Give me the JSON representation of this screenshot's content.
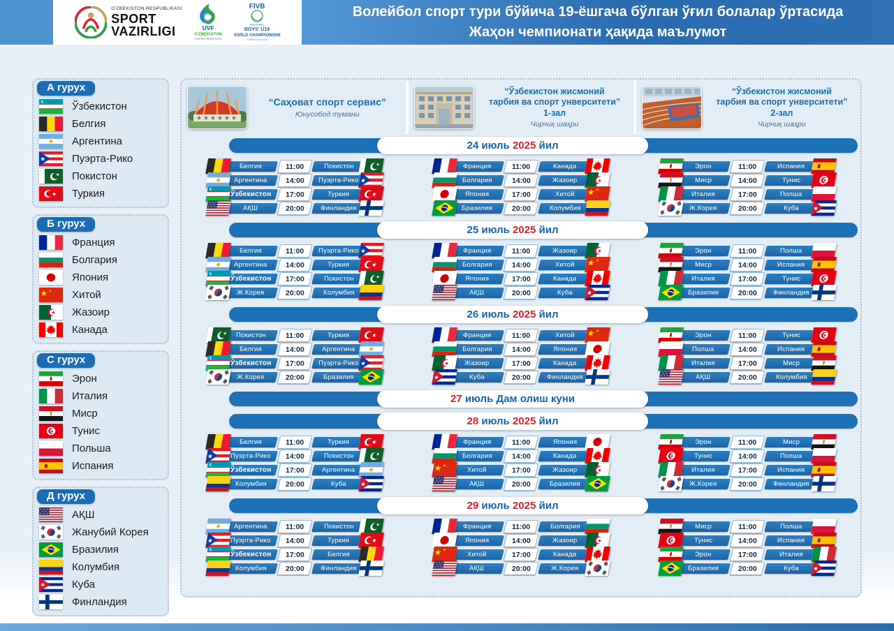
{
  "header": {
    "ministry": {
      "small": "O'ZBEKISTON RESPUBLIKASI",
      "big1": "SPORT",
      "big2": "VAZIRLIGI"
    },
    "uvf": {
      "acr": "UVF",
      "line1": "O'ZBEKISTON",
      "line2": "VOLEYBOL FEDERATSIYASI"
    },
    "fivb": {
      "brand": "FIVB",
      "sport": "VOLLEYBALL",
      "cat": "BOYS' U19",
      "event": "WORLD CHAMPIONSHIP",
      "host": "UZBEKISTAN 2025"
    },
    "title_line1": "Волейбол спорт тури бўйича 19-ёшгача бўлган ўғил болалар ўртасида",
    "title_line2": "Жаҳон чемпионати ҳақида маълумот"
  },
  "colors": {
    "bar_blue": "#1d71b6",
    "date_blue": "#1565ad",
    "date_red": "#e01f26",
    "pill_blue": "#1a6db4",
    "header_stripe": "#4e92cf"
  },
  "groups": [
    {
      "name": "А гурух",
      "teams": [
        {
          "f": "uz",
          "n": "Ўзбекистон"
        },
        {
          "f": "be",
          "n": "Белгия"
        },
        {
          "f": "ar",
          "n": "Аргентина"
        },
        {
          "f": "pr",
          "n": "Пуэрта-Рико"
        },
        {
          "f": "pk",
          "n": "Покистон"
        },
        {
          "f": "tr",
          "n": "Туркия"
        }
      ]
    },
    {
      "name": "Б гурух",
      "teams": [
        {
          "f": "fr",
          "n": "Франция"
        },
        {
          "f": "bg",
          "n": "Болгария"
        },
        {
          "f": "jp",
          "n": "Япония"
        },
        {
          "f": "cn",
          "n": "Хитой"
        },
        {
          "f": "dz",
          "n": "Жазоир"
        },
        {
          "f": "ca",
          "n": "Канада"
        }
      ]
    },
    {
      "name": "С гурух",
      "teams": [
        {
          "f": "ir",
          "n": "Эрон"
        },
        {
          "f": "it",
          "n": "Италия"
        },
        {
          "f": "eg",
          "n": "Миср"
        },
        {
          "f": "tn",
          "n": "Тунис"
        },
        {
          "f": "pl",
          "n": "Польша"
        },
        {
          "f": "es",
          "n": "Испания"
        }
      ]
    },
    {
      "name": "Д гурух",
      "teams": [
        {
          "f": "us",
          "n": "АҚШ"
        },
        {
          "f": "kr",
          "n": "Жанубий Корея"
        },
        {
          "f": "br",
          "n": "Бразилия"
        },
        {
          "f": "co",
          "n": "Колумбия"
        },
        {
          "f": "cu",
          "n": "Куба"
        },
        {
          "f": "fi",
          "n": "Финландия"
        }
      ]
    }
  ],
  "venues": [
    {
      "title_lines": [
        "“Саҳоват спорт сервис”"
      ],
      "subtitle": "Юнусобод тумани",
      "photo": "circus-dome-building"
    },
    {
      "title_lines": [
        "“Ўзбекистон жисмоний",
        "тарбия ва спорт унверситети”",
        "1-зал"
      ],
      "subtitle": "Чирчиқ шаҳри",
      "photo": "university-building"
    },
    {
      "title_lines": [
        "“Ўзбекистон жисмоний",
        "тарбия ва спорт унверситети”",
        "2-зал"
      ],
      "subtitle": "Чирчиқ шаҳри",
      "photo": "indoor-sports-hall"
    }
  ],
  "days": [
    {
      "banner": [
        {
          "t": "24 июль ",
          "c": "blue"
        },
        {
          "t": "2025",
          "c": "red"
        },
        {
          "t": " йил",
          "c": "blue"
        }
      ],
      "matches": [
        [
          {
            "hf": "be",
            "h": "Белгия",
            "t": "11:00",
            "af": "pk",
            "a": "Покистон"
          },
          {
            "hf": "ar",
            "h": "Аргентина",
            "t": "14:00",
            "af": "pr",
            "a": "Пуэрта-Рико"
          },
          {
            "hf": "uz",
            "h": "Ўзбекистон",
            "t": "17:00",
            "af": "tr",
            "a": "Туркия"
          },
          {
            "hf": "us",
            "h": "АҚШ",
            "t": "20:00",
            "af": "fi",
            "a": "Финландия"
          }
        ],
        [
          {
            "hf": "fr",
            "h": "Франция",
            "t": "11:00",
            "af": "ca",
            "a": "Канада"
          },
          {
            "hf": "bg",
            "h": "Болгария",
            "t": "14:00",
            "af": "dz",
            "a": "Жазоир"
          },
          {
            "hf": "jp",
            "h": "Япония",
            "t": "17:00",
            "af": "cn",
            "a": "Хитой"
          },
          {
            "hf": "br",
            "h": "Бразилия",
            "t": "20:00",
            "af": "co",
            "a": "Колумбия"
          }
        ],
        [
          {
            "hf": "ir",
            "h": "Эрон",
            "t": "11:00",
            "af": "es",
            "a": "Испания"
          },
          {
            "hf": "eg",
            "h": "Миср",
            "t": "14:00",
            "af": "tn",
            "a": "Тунис"
          },
          {
            "hf": "it",
            "h": "Италия",
            "t": "17:00",
            "af": "pl",
            "a": "Полша"
          },
          {
            "hf": "kr",
            "h": "Ж.Корея",
            "t": "20:00",
            "af": "cu",
            "a": "Куба"
          }
        ]
      ]
    },
    {
      "banner": [
        {
          "t": "25 июль ",
          "c": "blue"
        },
        {
          "t": "2025",
          "c": "red"
        },
        {
          "t": " йил",
          "c": "blue"
        }
      ],
      "matches": [
        [
          {
            "hf": "be",
            "h": "Белгия",
            "t": "11:00",
            "af": "pr",
            "a": "Пуэрта-Рико"
          },
          {
            "hf": "ar",
            "h": "Аргентина",
            "t": "14:00",
            "af": "tr",
            "a": "Туркия"
          },
          {
            "hf": "uz",
            "h": "Ўзбекистон",
            "t": "17:00",
            "af": "pk",
            "a": "Покистон"
          },
          {
            "hf": "kr",
            "h": "Ж.Корея",
            "t": "20:00",
            "af": "co",
            "a": "Колумбия"
          }
        ],
        [
          {
            "hf": "fr",
            "h": "Франция",
            "t": "11:00",
            "af": "dz",
            "a": "Жазоир"
          },
          {
            "hf": "bg",
            "h": "Болгария",
            "t": "14:00",
            "af": "cn",
            "a": "Хитой"
          },
          {
            "hf": "jp",
            "h": "Япония",
            "t": "17:00",
            "af": "ca",
            "a": "Канада"
          },
          {
            "hf": "us",
            "h": "АҚШ",
            "t": "20:00",
            "af": "cu",
            "a": "Куба"
          }
        ],
        [
          {
            "hf": "ir",
            "h": "Эрон",
            "t": "11:00",
            "af": "pl",
            "a": "Полша"
          },
          {
            "hf": "eg",
            "h": "Миср",
            "t": "14:00",
            "af": "es",
            "a": "Испания"
          },
          {
            "hf": "it",
            "h": "Италия",
            "t": "17:00",
            "af": "tn",
            "a": "Тунис"
          },
          {
            "hf": "br",
            "h": "Бразилия",
            "t": "20:00",
            "af": "fi",
            "a": "Финландия"
          }
        ]
      ]
    },
    {
      "banner": [
        {
          "t": "26 июль ",
          "c": "blue"
        },
        {
          "t": "2025",
          "c": "red"
        },
        {
          "t": " йил",
          "c": "blue"
        }
      ],
      "matches": [
        [
          {
            "hf": "pk",
            "h": "Покистон",
            "t": "11:00",
            "af": "tr",
            "a": "Туркия"
          },
          {
            "hf": "be",
            "h": "Белгия",
            "t": "14:00",
            "af": "ar",
            "a": "Аргентина"
          },
          {
            "hf": "uz",
            "h": "Ўзбекистон",
            "t": "17:00",
            "af": "pr",
            "a": "Пуэрта-Рико"
          },
          {
            "hf": "kr",
            "h": "Ж.Корея",
            "t": "20:00",
            "af": "br",
            "a": "Бразилия"
          }
        ],
        [
          {
            "hf": "fr",
            "h": "Франция",
            "t": "11:00",
            "af": "cn",
            "a": "Хитой"
          },
          {
            "hf": "bg",
            "h": "Болгария",
            "t": "14:00",
            "af": "jp",
            "a": "Япония"
          },
          {
            "hf": "dz",
            "h": "Жазоир",
            "t": "17:00",
            "af": "ca",
            "a": "Канада"
          },
          {
            "hf": "cu",
            "h": "Куба",
            "t": "20:00",
            "af": "fi",
            "a": "Финландия"
          }
        ],
        [
          {
            "hf": "ir",
            "h": "Эрон",
            "t": "11:00",
            "af": "tn",
            "a": "Тунис"
          },
          {
            "hf": "pl",
            "h": "Полша",
            "t": "14:00",
            "af": "es",
            "a": "Испания"
          },
          {
            "hf": "it",
            "h": "Италия",
            "t": "17:00",
            "af": "eg",
            "a": "Миср"
          },
          {
            "hf": "us",
            "h": "АҚШ",
            "t": "20:00",
            "af": "co",
            "a": "Колумбия"
          }
        ]
      ]
    },
    {
      "banner": [
        {
          "t": "27",
          "c": "red"
        },
        {
          "t": " июль Дам олиш куни",
          "c": "blue"
        }
      ],
      "matches": null
    },
    {
      "banner": [
        {
          "t": "28",
          "c": "red"
        },
        {
          "t": " июль ",
          "c": "blue"
        },
        {
          "t": "2025",
          "c": "red"
        },
        {
          "t": " йил",
          "c": "blue"
        }
      ],
      "matches": [
        [
          {
            "hf": "be",
            "h": "Белгия",
            "t": "11:00",
            "af": "tr",
            "a": "Туркия"
          },
          {
            "hf": "pr",
            "h": "Пуэрта-Рико",
            "t": "14:00",
            "af": "pk",
            "a": "Покистон"
          },
          {
            "hf": "uz",
            "h": "Ўзбекистон",
            "t": "17:00",
            "af": "ar",
            "a": "Аргентина"
          },
          {
            "hf": "co",
            "h": "Колумбия",
            "t": "20:00",
            "af": "cu",
            "a": "Куба"
          }
        ],
        [
          {
            "hf": "fr",
            "h": "Франция",
            "t": "11:00",
            "af": "jp",
            "a": "Япония"
          },
          {
            "hf": "bg",
            "h": "Болгария",
            "t": "14:00",
            "af": "ca",
            "a": "Канада"
          },
          {
            "hf": "cn",
            "h": "Хитой",
            "t": "17:00",
            "af": "dz",
            "a": "Жазоир"
          },
          {
            "hf": "us",
            "h": "АҚШ",
            "t": "20:00",
            "af": "br",
            "a": "Бразилия"
          }
        ],
        [
          {
            "hf": "ir",
            "h": "Эрон",
            "t": "11:00",
            "af": "eg",
            "a": "Миср"
          },
          {
            "hf": "tn",
            "h": "Тунис",
            "t": "14:00",
            "af": "pl",
            "a": "Полша"
          },
          {
            "hf": "it",
            "h": "Италия",
            "t": "17:00",
            "af": "es",
            "a": "Испания"
          },
          {
            "hf": "kr",
            "h": "Ж.Корея",
            "t": "20:00",
            "af": "fi",
            "a": "Финландия"
          }
        ]
      ]
    },
    {
      "banner": [
        {
          "t": "29",
          "c": "red"
        },
        {
          "t": " июль ",
          "c": "blue"
        },
        {
          "t": "2025",
          "c": "red"
        },
        {
          "t": " йил",
          "c": "blue"
        }
      ],
      "matches": [
        [
          {
            "hf": "ar",
            "h": "Аргентина",
            "t": "11:00",
            "af": "pk",
            "a": "Покистон"
          },
          {
            "hf": "pr",
            "h": "Пуэрта-Рико",
            "t": "14:00",
            "af": "tr",
            "a": "Туркия"
          },
          {
            "hf": "uz",
            "h": "Ўзбекистон",
            "t": "17:00",
            "af": "be",
            "a": "Белгия"
          },
          {
            "hf": "co",
            "h": "Колумбия",
            "t": "20:00",
            "af": "fi",
            "a": "Финландия"
          }
        ],
        [
          {
            "hf": "fr",
            "h": "Франция",
            "t": "11:00",
            "af": "bg",
            "a": "Болгария"
          },
          {
            "hf": "jp",
            "h": "Япония",
            "t": "14:00",
            "af": "dz",
            "a": "Жазоир"
          },
          {
            "hf": "cn",
            "h": "Хитой",
            "t": "17:00",
            "af": "ca",
            "a": "Канада"
          },
          {
            "hf": "us",
            "h": "АҚШ",
            "t": "20:00",
            "af": "kr",
            "a": "Ж.Корея"
          }
        ],
        [
          {
            "hf": "eg",
            "h": "Миср",
            "t": "11:00",
            "af": "pl",
            "a": "Полша"
          },
          {
            "hf": "tn",
            "h": "Тунис",
            "t": "14:00",
            "af": "es",
            "a": "Испания"
          },
          {
            "hf": "ir",
            "h": "Эрон",
            "t": "17:00",
            "af": "it",
            "a": "Италия"
          },
          {
            "hf": "br",
            "h": "Бразилия",
            "t": "20:00",
            "af": "cu",
            "a": "Куба"
          }
        ]
      ]
    }
  ]
}
